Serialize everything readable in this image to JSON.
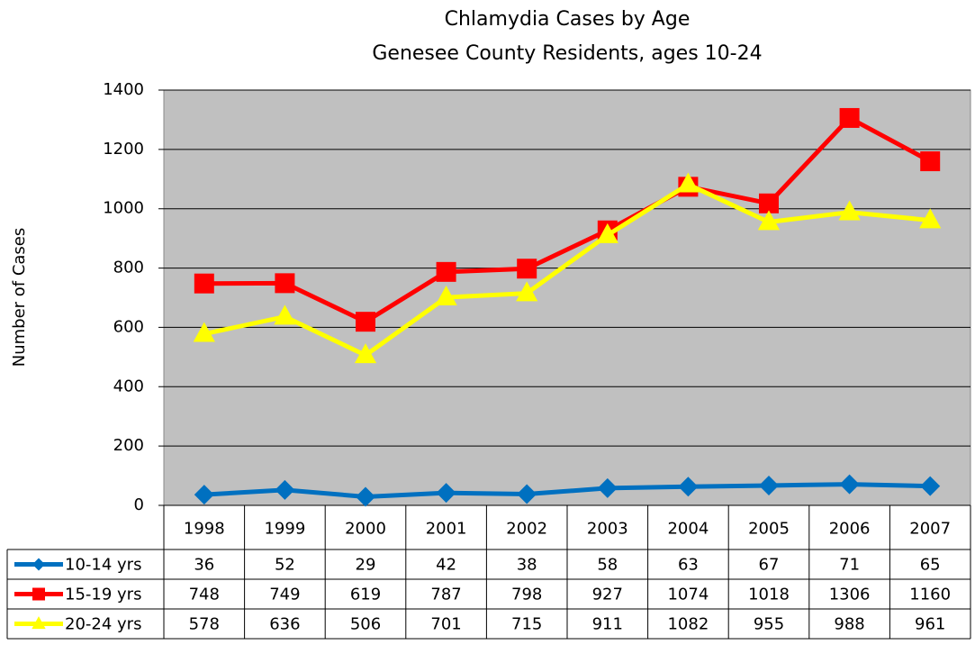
{
  "chart_data": {
    "type": "line",
    "title": "Chlamydia Cases by Age",
    "subtitle": "Genesee County Residents, ages 10-24",
    "y_label": "Number of Cases",
    "categories": [
      "1998",
      "1999",
      "2000",
      "2001",
      "2002",
      "2003",
      "2004",
      "2005",
      "2006",
      "2007"
    ],
    "series": [
      {
        "name": "10-14 yrs",
        "color": "#0070c0",
        "marker": "diamond",
        "values": [
          36,
          52,
          29,
          42,
          38,
          58,
          63,
          67,
          71,
          65
        ]
      },
      {
        "name": "15-19 yrs",
        "color": "#ff0000",
        "marker": "square",
        "values": [
          748,
          749,
          619,
          787,
          798,
          927,
          1074,
          1018,
          1306,
          1160
        ]
      },
      {
        "name": "20-24 yrs",
        "color": "#ffff00",
        "marker": "triangle",
        "values": [
          578,
          636,
          506,
          701,
          715,
          911,
          1082,
          955,
          988,
          961
        ]
      }
    ],
    "ylim": [
      0,
      1400
    ],
    "yticks": [
      0,
      200,
      400,
      600,
      800,
      1000,
      1200,
      1400
    ],
    "grid": true,
    "data_table": true
  }
}
